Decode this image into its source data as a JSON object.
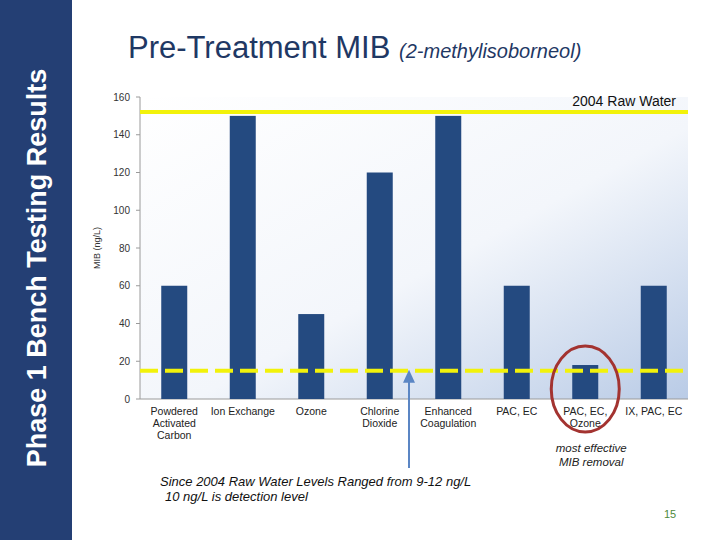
{
  "chart_data": {
    "type": "bar",
    "side_title": "Phase 1 Bench Testing Results",
    "title": "Pre-Treatment MIB",
    "subtitle": "(2-methylisoborneol)",
    "y_label": "MIB (ng/L)",
    "categories": [
      "Powdered Activated Carbon",
      "Ion Exchange",
      "Ozone",
      "Chlorine Dioxide",
      "Enhanced Coagulation",
      "PAC, EC",
      "PAC, EC, Ozone",
      "IX, PAC, EC"
    ],
    "values": [
      60,
      150,
      45,
      120,
      150,
      60,
      18,
      60
    ],
    "color": "#244a80",
    "ylim": [
      0,
      160
    ],
    "yticks": [
      0,
      20,
      40,
      60,
      80,
      100,
      120,
      140,
      160
    ],
    "grid": false,
    "reference_lines": [
      {
        "label": "2004 Raw Water",
        "value": 152,
        "color": "#f2f20a",
        "line_style": "solid"
      },
      {
        "value": 15,
        "color": "#f2f20a",
        "line_style": "dashed"
      }
    ],
    "annotations": [
      "Since 2004 Raw Water Levels Ranged from 9-12 ng/L",
      "10 ng/L is detection level"
    ],
    "highlight": {
      "category": "PAC, EC, Ozone",
      "label": "most effective MIB removal",
      "color": "#a33330"
    },
    "page_number": 15
  }
}
